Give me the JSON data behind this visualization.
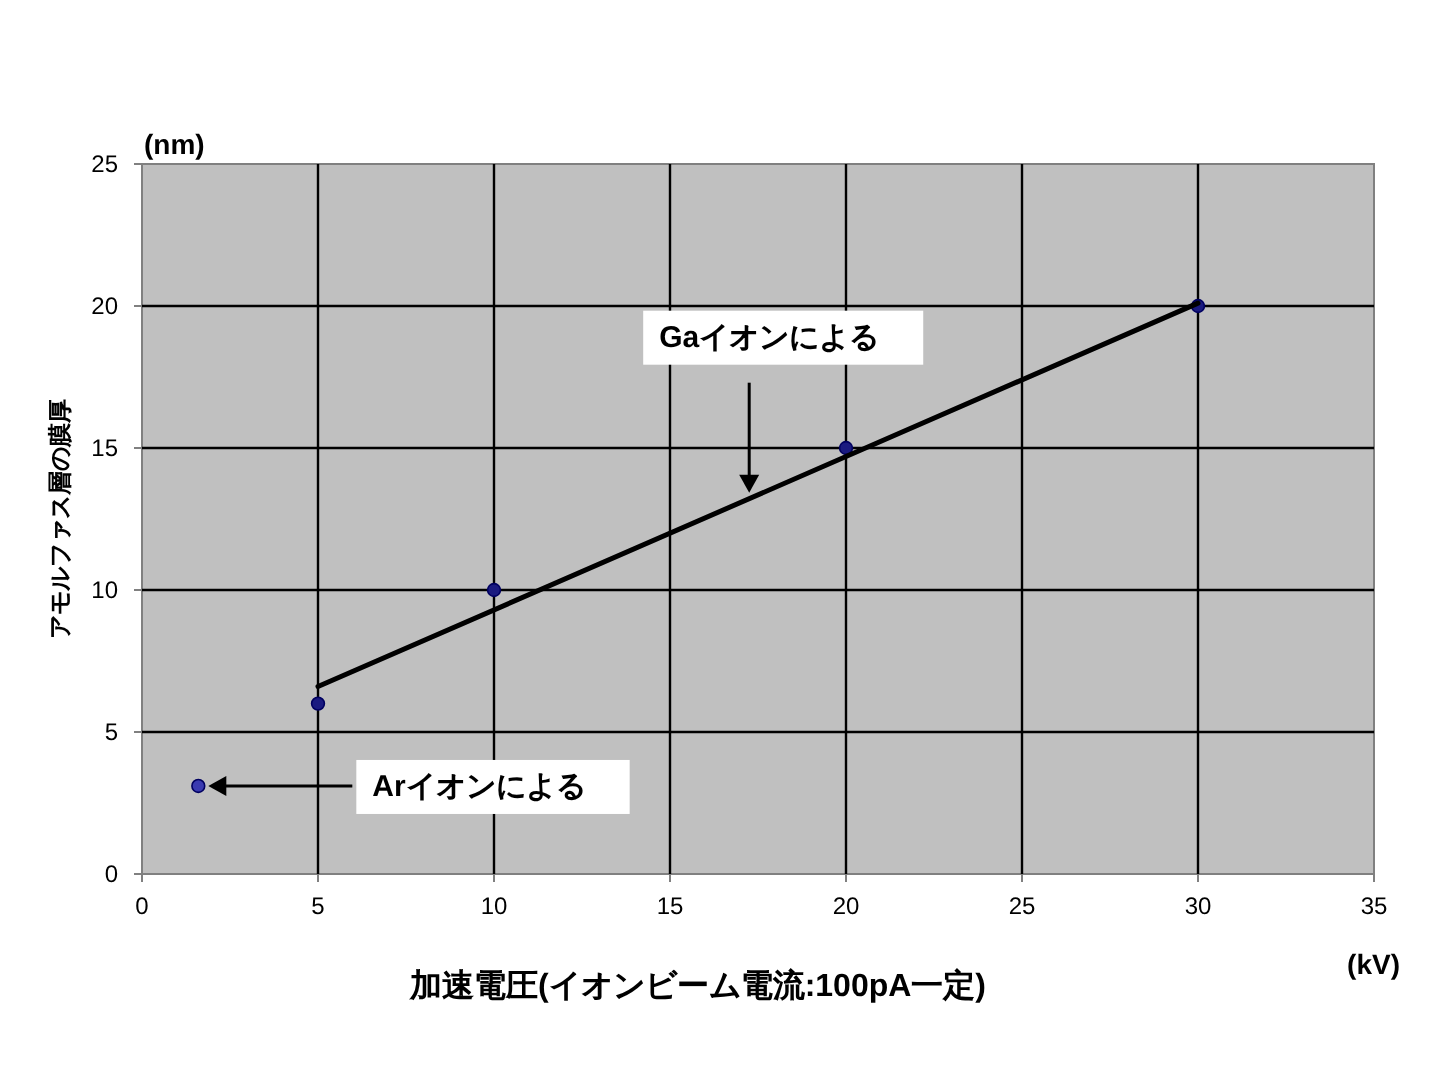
{
  "chart_data": {
    "type": "scatter",
    "xlabel": "加速電圧(イオンビーム電流:100pA一定)",
    "ylabel": "アモルファス層の膜厚",
    "xlim": [
      0,
      35
    ],
    "ylim": [
      0,
      25
    ],
    "xticks": [
      0,
      5,
      10,
      15,
      20,
      25,
      30,
      35
    ],
    "yticks": [
      0,
      5,
      10,
      15,
      20,
      25
    ],
    "grid": true,
    "marker": "circle",
    "series": [
      {
        "color": "#1a1a80",
        "x": [
          5,
          10,
          20,
          30
        ],
        "values": [
          6,
          10,
          15,
          20
        ]
      },
      {
        "color": "#3a3ab0",
        "x": [
          1.6
        ],
        "values": [
          3.1
        ]
      },
      {
        "type": "line",
        "color": "#000000",
        "marker": "none",
        "x": [
          5,
          30
        ],
        "values": [
          6.6,
          20.1
        ]
      }
    ],
    "annotations": [
      "Gaイオンによる",
      "Arイオンによる",
      "(nm)",
      "(kV)"
    ]
  }
}
